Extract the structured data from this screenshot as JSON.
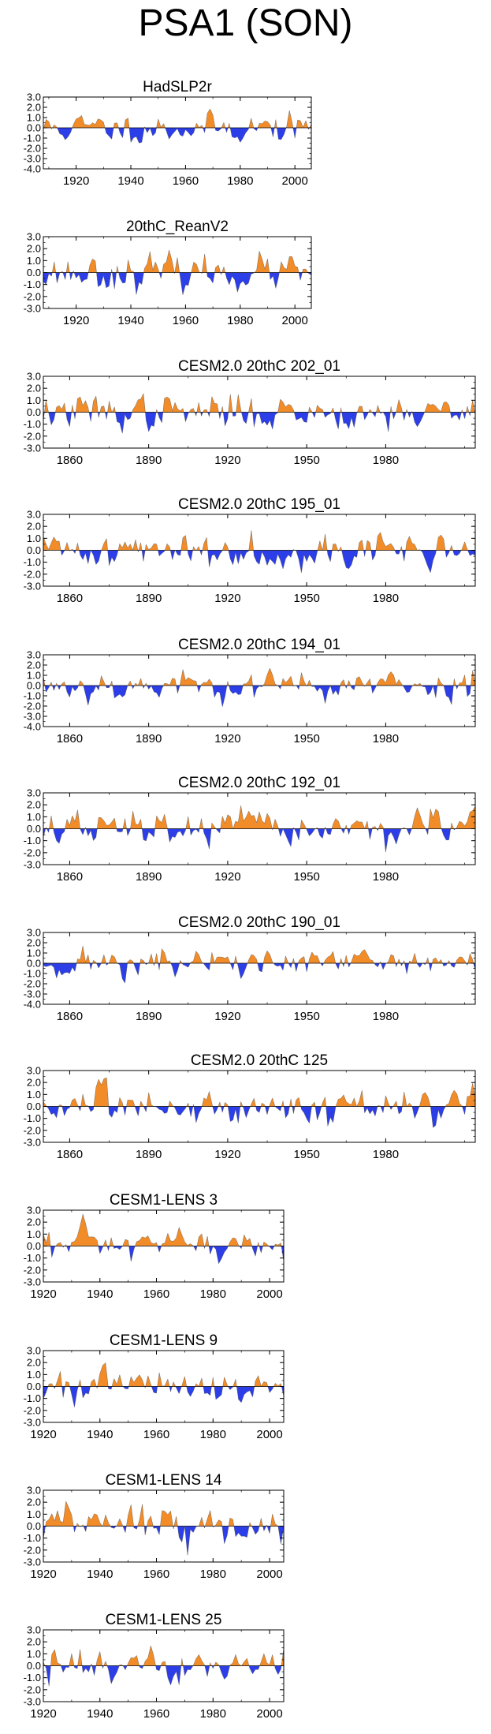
{
  "title": "PSA1 (SON)",
  "colors": {
    "positive": "#f28c28",
    "negative": "#2b3ee8",
    "axis": "#000000"
  },
  "chart_data": [
    {
      "type": "area",
      "title": "HadSLP2r",
      "x_start": 1908,
      "x_end": 2006,
      "xlim": [
        1908,
        2006
      ],
      "ylim": [
        -4,
        3
      ],
      "xticks": [
        1920,
        1940,
        1960,
        1980,
        2000
      ],
      "yticks": [
        3.0,
        2.0,
        1.0,
        0.0,
        -1.0,
        -2.0,
        -3.0,
        -4.0
      ],
      "seed": 11,
      "values": []
    },
    {
      "type": "area",
      "title": "20thC_ReanV2",
      "x_start": 1908,
      "x_end": 2006,
      "xlim": [
        1908,
        2006
      ],
      "ylim": [
        -3,
        3
      ],
      "xticks": [
        1920,
        1940,
        1960,
        1980,
        2000
      ],
      "yticks": [
        3.0,
        2.0,
        1.0,
        0.0,
        -1.0,
        -2.0,
        -3.0
      ],
      "seed": 23,
      "values": []
    },
    {
      "type": "area",
      "title": "CESM2.0 20thC 202_01",
      "x_start": 1850,
      "x_end": 2014,
      "xlim": [
        1850,
        2014
      ],
      "ylim": [
        -3,
        3
      ],
      "xticks": [
        1860,
        1890,
        1920,
        1950,
        1980
      ],
      "yticks": [
        3.0,
        2.0,
        1.0,
        0.0,
        -1.0,
        -2.0,
        -3.0
      ],
      "seed": 37,
      "values": []
    },
    {
      "type": "area",
      "title": "CESM2.0 20thC 195_01",
      "x_start": 1850,
      "x_end": 2014,
      "xlim": [
        1850,
        2014
      ],
      "ylim": [
        -3,
        3
      ],
      "xticks": [
        1860,
        1890,
        1920,
        1950,
        1980
      ],
      "yticks": [
        3.0,
        2.0,
        1.0,
        0.0,
        -1.0,
        -2.0,
        -3.0
      ],
      "seed": 41,
      "values": []
    },
    {
      "type": "area",
      "title": "CESM2.0 20thC 194_01",
      "x_start": 1850,
      "x_end": 2014,
      "xlim": [
        1850,
        2014
      ],
      "ylim": [
        -4,
        3
      ],
      "xticks": [
        1860,
        1890,
        1920,
        1950,
        1980
      ],
      "yticks": [
        3.0,
        2.0,
        1.0,
        0.0,
        -1.0,
        -2.0,
        -3.0,
        -4.0
      ],
      "seed": 53,
      "values": []
    },
    {
      "type": "area",
      "title": "CESM2.0 20thC 192_01",
      "x_start": 1850,
      "x_end": 2014,
      "xlim": [
        1850,
        2014
      ],
      "ylim": [
        -3,
        3
      ],
      "xticks": [
        1860,
        1890,
        1920,
        1950,
        1980
      ],
      "yticks": [
        3.0,
        2.0,
        1.0,
        0.0,
        -1.0,
        -2.0,
        -3.0
      ],
      "seed": 67,
      "values": []
    },
    {
      "type": "area",
      "title": "CESM2.0 20thC 190_01",
      "x_start": 1850,
      "x_end": 2014,
      "xlim": [
        1850,
        2014
      ],
      "ylim": [
        -4,
        3
      ],
      "xticks": [
        1860,
        1890,
        1920,
        1950,
        1980
      ],
      "yticks": [
        3.0,
        2.0,
        1.0,
        0.0,
        -1.0,
        -2.0,
        -3.0,
        -4.0
      ],
      "seed": 71,
      "values": []
    },
    {
      "type": "area",
      "title": "CESM2.0 20thC 125",
      "x_start": 1850,
      "x_end": 2014,
      "xlim": [
        1850,
        2014
      ],
      "ylim": [
        -3,
        3
      ],
      "xticks": [
        1860,
        1890,
        1920,
        1950,
        1980
      ],
      "yticks": [
        3.0,
        2.0,
        1.0,
        0.0,
        -1.0,
        -2.0,
        -3.0
      ],
      "seed": 83,
      "values": []
    },
    {
      "type": "area",
      "title": "CESM1-LENS 3",
      "x_start": 1920,
      "x_end": 2005,
      "xlim": [
        1920,
        2005
      ],
      "ylim": [
        -3,
        3
      ],
      "xticks": [
        1920,
        1940,
        1960,
        1980,
        2000
      ],
      "yticks": [
        3.0,
        2.0,
        1.0,
        0.0,
        -1.0,
        -2.0,
        -3.0
      ],
      "seed": 97,
      "values": []
    },
    {
      "type": "area",
      "title": "CESM1-LENS 9",
      "x_start": 1920,
      "x_end": 2005,
      "xlim": [
        1920,
        2005
      ],
      "ylim": [
        -3,
        3
      ],
      "xticks": [
        1920,
        1940,
        1960,
        1980,
        2000
      ],
      "yticks": [
        3.0,
        2.0,
        1.0,
        0.0,
        -1.0,
        -2.0,
        -3.0
      ],
      "seed": 101,
      "values": []
    },
    {
      "type": "area",
      "title": "CESM1-LENS 14",
      "x_start": 1920,
      "x_end": 2005,
      "xlim": [
        1920,
        2005
      ],
      "ylim": [
        -3,
        3
      ],
      "xticks": [
        1920,
        1940,
        1960,
        1980,
        2000
      ],
      "yticks": [
        3.0,
        2.0,
        1.0,
        0.0,
        -1.0,
        -2.0,
        -3.0
      ],
      "seed": 113,
      "values": []
    },
    {
      "type": "area",
      "title": "CESM1-LENS 25",
      "x_start": 1920,
      "x_end": 2005,
      "xlim": [
        1920,
        2005
      ],
      "ylim": [
        -3,
        3
      ],
      "xticks": [
        1920,
        1940,
        1960,
        1980,
        2000
      ],
      "yticks": [
        3.0,
        2.0,
        1.0,
        0.0,
        -1.0,
        -2.0,
        -3.0
      ],
      "seed": 127,
      "values": []
    }
  ]
}
